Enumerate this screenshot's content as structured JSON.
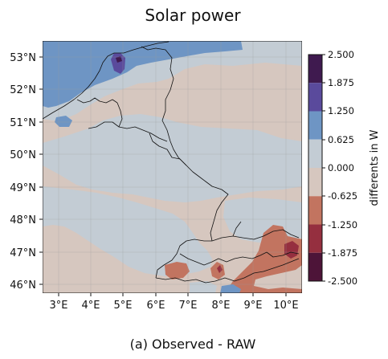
{
  "chart_data": {
    "type": "heatmap",
    "title": "Solar power",
    "caption": "(a) Observed - RAW",
    "x_ticks": [
      "3°E",
      "4°E",
      "5°E",
      "6°E",
      "7°E",
      "8°E",
      "9°E",
      "10°E"
    ],
    "y_ticks": [
      "53°N",
      "52°N",
      "51°N",
      "50°N",
      "49°N",
      "48°N",
      "47°N",
      "46°N"
    ],
    "xlim": [
      2.5,
      10.5
    ],
    "ylim": [
      45.75,
      53.5
    ],
    "grid": true,
    "colorbar": {
      "label": "differents in W",
      "ticks": [
        "2.500",
        "1.875",
        "1.250",
        "0.625",
        "0.000",
        "-0.625",
        "-1.250",
        "-1.875",
        "-2.500"
      ],
      "range": [
        -2.5,
        2.5
      ],
      "levels": [
        {
          "range": [
            1.875,
            2.5
          ],
          "color": "#3f1a4f"
        },
        {
          "range": [
            1.25,
            1.875
          ],
          "color": "#5a4a9c"
        },
        {
          "range": [
            0.625,
            1.25
          ],
          "color": "#6e95c4"
        },
        {
          "range": [
            0.0,
            0.625
          ],
          "color": "#c3ccd4"
        },
        {
          "range": [
            -0.625,
            0.0
          ],
          "color": "#d6c7bf"
        },
        {
          "range": [
            -1.25,
            -0.625
          ],
          "color": "#c27460"
        },
        {
          "range": [
            -1.875,
            -1.25
          ],
          "color": "#952f3f"
        },
        {
          "range": [
            -2.5,
            -1.875
          ],
          "color": "#4d1438"
        }
      ]
    }
  }
}
